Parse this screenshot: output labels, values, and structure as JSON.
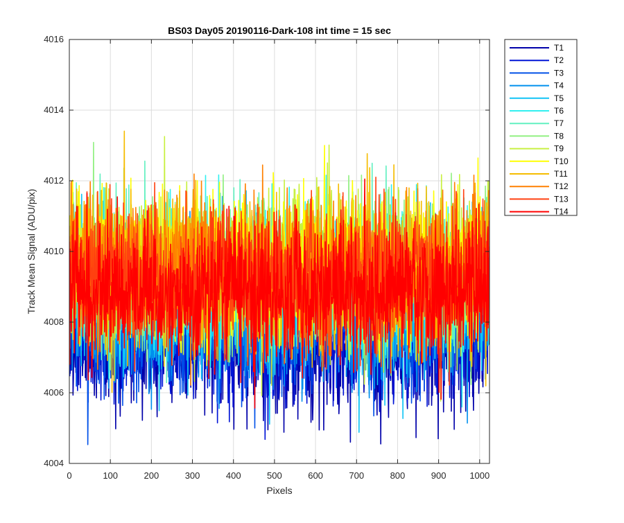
{
  "chart_data": {
    "type": "line",
    "title": "BS03 Day05 20190116-Dark-108 int time = 15 sec",
    "xlabel": "Pixels",
    "ylabel": "Track Mean Signal (ADU/pix)",
    "xlim": [
      0,
      1024
    ],
    "ylim": [
      4004,
      4016
    ],
    "x_ticks": [
      "0",
      "100",
      "200",
      "300",
      "400",
      "500",
      "600",
      "700",
      "800",
      "900",
      "1000"
    ],
    "y_ticks": [
      "4004",
      "4006",
      "4008",
      "4010",
      "4012",
      "4014",
      "4016"
    ],
    "grid": true,
    "legend_position": "outside-top-right",
    "x": {
      "start": 1,
      "end": 1024,
      "step": 1
    },
    "series": [
      {
        "name": "T1",
        "color": "#0000aa",
        "mean": 4007.4,
        "sd": 0.95
      },
      {
        "name": "T2",
        "color": "#0014d6",
        "mean": 4007.7,
        "sd": 0.95
      },
      {
        "name": "T3",
        "color": "#0050e8",
        "mean": 4008.0,
        "sd": 0.95
      },
      {
        "name": "T4",
        "color": "#0090ee",
        "mean": 4008.3,
        "sd": 0.95
      },
      {
        "name": "T5",
        "color": "#10c4f5",
        "mean": 4008.7,
        "sd": 1.0
      },
      {
        "name": "T6",
        "color": "#30f0f0",
        "mean": 4009.1,
        "sd": 1.05
      },
      {
        "name": "T7",
        "color": "#60f0c0",
        "mean": 4009.3,
        "sd": 1.05
      },
      {
        "name": "T8",
        "color": "#90f080",
        "mean": 4009.4,
        "sd": 1.05
      },
      {
        "name": "T9",
        "color": "#c8f040",
        "mean": 4009.5,
        "sd": 1.05
      },
      {
        "name": "T10",
        "color": "#ffff00",
        "mean": 4009.6,
        "sd": 1.05
      },
      {
        "name": "T11",
        "color": "#f5bc00",
        "mean": 4009.5,
        "sd": 1.05
      },
      {
        "name": "T12",
        "color": "#ff8000",
        "mean": 4009.4,
        "sd": 1.0
      },
      {
        "name": "T13",
        "color": "#ff4010",
        "mean": 4009.2,
        "sd": 1.0
      },
      {
        "name": "T14",
        "color": "#ff0000",
        "mean": 4008.9,
        "sd": 0.95
      }
    ]
  }
}
